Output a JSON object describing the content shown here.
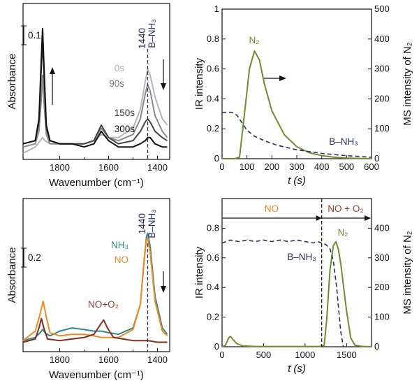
{
  "colors": {
    "olive": "#6f8c2e",
    "navy": "#2b2f5e",
    "teal": "#2b8a8c",
    "orange": "#f08a24",
    "darkred": "#8a2a1f",
    "gray1": "#8a8a8a",
    "gray2": "#b5b5b5",
    "gray3": "#444444",
    "black": "#111111",
    "noText": "#9b3b2e"
  },
  "chart_data": [
    {
      "type": "line",
      "panel": "top-left",
      "xlabel": "Wavenumber (cm⁻¹)",
      "ylabel": "Absorbance",
      "x_ticks": [
        "1800",
        "1600",
        "1400"
      ],
      "xlim": [
        1950,
        1350
      ],
      "scale_bar": "0.1",
      "annotations": {
        "peak_wn": "1440",
        "peak_label": "B–NH₃"
      },
      "series": [
        {
          "name": "0s",
          "color": "gray2",
          "x": [
            1950,
            1900,
            1880,
            1870,
            1860,
            1840,
            1800,
            1750,
            1700,
            1660,
            1630,
            1600,
            1560,
            1500,
            1470,
            1450,
            1440,
            1430,
            1410,
            1380,
            1360
          ],
          "y": [
            0.02,
            0.04,
            0.06,
            0.07,
            0.06,
            0.05,
            0.05,
            0.05,
            0.05,
            0.06,
            0.08,
            0.07,
            0.07,
            0.1,
            0.16,
            0.25,
            0.29,
            0.27,
            0.2,
            0.13,
            0.11
          ]
        },
        {
          "name": "90s",
          "color": "gray1",
          "x": [
            1950,
            1900,
            1885,
            1875,
            1870,
            1865,
            1855,
            1840,
            1800,
            1750,
            1700,
            1660,
            1630,
            1600,
            1560,
            1500,
            1470,
            1450,
            1440,
            1430,
            1410,
            1380,
            1360
          ],
          "y": [
            0.04,
            0.05,
            0.09,
            0.2,
            0.27,
            0.19,
            0.08,
            0.05,
            0.05,
            0.05,
            0.05,
            0.06,
            0.1,
            0.07,
            0.06,
            0.08,
            0.13,
            0.21,
            0.24,
            0.22,
            0.14,
            0.09,
            0.07
          ]
        },
        {
          "name": "150s",
          "color": "gray3",
          "x": [
            1950,
            1900,
            1885,
            1875,
            1870,
            1865,
            1855,
            1840,
            1800,
            1750,
            1700,
            1660,
            1630,
            1600,
            1560,
            1500,
            1470,
            1450,
            1440,
            1430,
            1410,
            1380,
            1360
          ],
          "y": [
            0.05,
            0.06,
            0.12,
            0.3,
            0.38,
            0.28,
            0.1,
            0.06,
            0.05,
            0.05,
            0.05,
            0.06,
            0.11,
            0.07,
            0.05,
            0.06,
            0.09,
            0.12,
            0.13,
            0.12,
            0.09,
            0.07,
            0.06
          ]
        },
        {
          "name": "300s",
          "color": "black",
          "x": [
            1950,
            1900,
            1885,
            1875,
            1870,
            1865,
            1855,
            1840,
            1800,
            1750,
            1700,
            1660,
            1630,
            1600,
            1560,
            1500,
            1470,
            1450,
            1440,
            1430,
            1410,
            1380,
            1360
          ],
          "y": [
            0.05,
            0.06,
            0.13,
            0.33,
            0.42,
            0.31,
            0.11,
            0.06,
            0.05,
            0.05,
            0.04,
            0.05,
            0.09,
            0.06,
            0.04,
            0.04,
            0.05,
            0.06,
            0.07,
            0.07,
            0.05,
            0.04,
            0.04
          ]
        }
      ]
    },
    {
      "type": "line",
      "panel": "top-right",
      "xlabel": "t (s)",
      "ylabel": "IR intensity",
      "ylabel_right": "MS intensity of N₂",
      "xlim": [
        0,
        600
      ],
      "ylim": [
        0,
        1
      ],
      "ylim_right": [
        0,
        500
      ],
      "x_ticks": [
        "0",
        "100",
        "200",
        "300",
        "400",
        "500",
        "600"
      ],
      "y_ticks": [
        "0",
        "0.2",
        "0.4",
        "0.6",
        "0.8",
        "1"
      ],
      "y_ticks_right": [
        "0",
        "100",
        "200",
        "300",
        "400",
        "500"
      ],
      "series": [
        {
          "name": "N₂",
          "axis": "right",
          "color": "olive",
          "x": [
            0,
            50,
            70,
            90,
            110,
            130,
            150,
            170,
            200,
            250,
            300,
            350,
            400,
            450,
            500,
            550,
            600
          ],
          "y": [
            0,
            0,
            5,
            150,
            300,
            360,
            330,
            250,
            160,
            80,
            40,
            20,
            10,
            5,
            2,
            1,
            0
          ]
        },
        {
          "name": "B–NH₃",
          "axis": "left",
          "color": "navy",
          "dashed": true,
          "x": [
            0,
            40,
            60,
            80,
            100,
            130,
            170,
            220,
            300,
            400,
            500,
            600
          ],
          "y": [
            0.31,
            0.31,
            0.29,
            0.24,
            0.19,
            0.15,
            0.12,
            0.09,
            0.06,
            0.035,
            0.02,
            0.01
          ]
        }
      ]
    },
    {
      "type": "line",
      "panel": "bottom-left",
      "xlabel": "Wavenumber (cm⁻¹)",
      "ylabel": "Absorbance",
      "x_ticks": [
        "1800",
        "1600",
        "1400"
      ],
      "xlim": [
        1950,
        1350
      ],
      "scale_bar": "0.2",
      "annotations": {
        "peak_wn": "1440",
        "peak_label": "B–NH₃"
      },
      "series": [
        {
          "name": "NH₃",
          "color": "teal",
          "x": [
            1950,
            1900,
            1880,
            1870,
            1860,
            1840,
            1800,
            1750,
            1700,
            1660,
            1630,
            1600,
            1560,
            1500,
            1470,
            1455,
            1445,
            1440,
            1430,
            1410,
            1380,
            1360
          ],
          "y": [
            0.02,
            0.04,
            0.07,
            0.09,
            0.07,
            0.05,
            0.08,
            0.1,
            0.09,
            0.08,
            0.08,
            0.07,
            0.06,
            0.1,
            0.25,
            0.52,
            0.68,
            0.7,
            0.62,
            0.3,
            0.1,
            0.06
          ]
        },
        {
          "name": "NO",
          "color": "orange",
          "x": [
            1950,
            1900,
            1880,
            1868,
            1855,
            1840,
            1800,
            1750,
            1700,
            1660,
            1630,
            1600,
            1560,
            1500,
            1470,
            1455,
            1445,
            1440,
            1430,
            1410,
            1380,
            1360
          ],
          "y": [
            0.02,
            0.08,
            0.19,
            0.27,
            0.17,
            0.07,
            0.05,
            0.06,
            0.06,
            0.05,
            0.04,
            0.04,
            0.04,
            0.09,
            0.25,
            0.53,
            0.66,
            0.67,
            0.58,
            0.27,
            0.08,
            0.05
          ]
        },
        {
          "name": "NO+O₂",
          "color": "darkred",
          "x": [
            1950,
            1900,
            1885,
            1875,
            1865,
            1850,
            1800,
            1750,
            1700,
            1660,
            1630,
            1620,
            1605,
            1580,
            1540,
            1500,
            1460,
            1440,
            1400,
            1360
          ],
          "y": [
            0.01,
            0.03,
            0.1,
            0.16,
            0.1,
            0.03,
            0.02,
            0.03,
            0.04,
            0.06,
            0.13,
            0.15,
            0.1,
            0.04,
            0.03,
            0.02,
            0.02,
            0.02,
            0.01,
            0.01
          ]
        }
      ]
    },
    {
      "type": "line",
      "panel": "bottom-right",
      "xlabel": "t (s)",
      "ylabel": "IR intensity",
      "ylabel_right": "MS intensity of N₂",
      "xlim": [
        0,
        1800
      ],
      "ylim": [
        0,
        1
      ],
      "ylim_right": [
        0,
        500
      ],
      "x_ticks": [
        "0",
        "500",
        "1000",
        "1500"
      ],
      "y_ticks": [
        "0",
        "0.2",
        "0.4",
        "0.6",
        "0.8"
      ],
      "y_ticks_right": [
        "0",
        "100",
        "200",
        "300",
        "400"
      ],
      "phases": [
        {
          "label": "NO",
          "end": 1200
        },
        {
          "label": "NO + O₂",
          "start": 1200
        }
      ],
      "series": [
        {
          "name": "N₂",
          "axis": "right",
          "color": "olive",
          "x": [
            0,
            40,
            80,
            100,
            130,
            180,
            250,
            400,
            800,
            1150,
            1200,
            1230,
            1260,
            1300,
            1340,
            1370,
            1400,
            1430,
            1460,
            1500,
            1550,
            1600,
            1700,
            1800
          ],
          "y": [
            0,
            5,
            30,
            35,
            25,
            10,
            3,
            1,
            1,
            1,
            2,
            5,
            90,
            260,
            340,
            355,
            330,
            280,
            210,
            120,
            30,
            5,
            1,
            0
          ]
        },
        {
          "name": "B–NH₃",
          "axis": "left",
          "color": "navy",
          "dashed": true,
          "x": [
            0,
            50,
            100,
            200,
            300,
            400,
            500,
            600,
            700,
            800,
            900,
            1000,
            1100,
            1150,
            1200,
            1250,
            1300,
            1340,
            1380,
            1400,
            1430,
            1460
          ],
          "y": [
            0.7,
            0.71,
            0.72,
            0.71,
            0.72,
            0.71,
            0.72,
            0.71,
            0.72,
            0.71,
            0.72,
            0.71,
            0.7,
            0.71,
            0.7,
            0.69,
            0.66,
            0.58,
            0.4,
            0.28,
            0.1,
            0.0
          ]
        }
      ]
    }
  ],
  "labels": {
    "tl_wn": "1440",
    "tl_bnh3": "B–NH₃",
    "tl_0s": "0s",
    "tl_90s": "90s",
    "tl_150s": "150s",
    "tl_300s": "300s",
    "tl_scale": "0.1",
    "tr_n2": "N₂",
    "tr_bnh3": "B–NH₃",
    "bl_nh3": "NH₃",
    "bl_no": "NO",
    "bl_noo2": "NO+O₂",
    "bl_scale": "0.2",
    "br_n2": "N₂",
    "br_bnh3": "B–NH₃",
    "br_phase1": "NO",
    "br_phase2": "NO + O₂"
  }
}
